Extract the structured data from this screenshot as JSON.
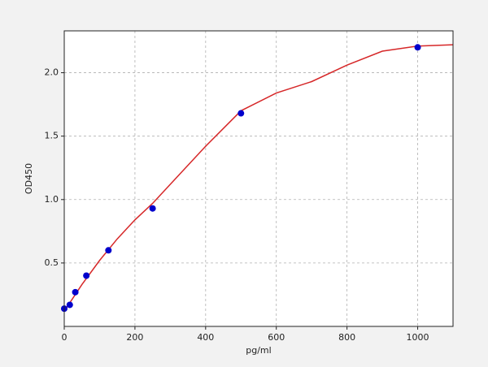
{
  "chart_data": {
    "type": "scatter",
    "xlabel": "pg/ml",
    "ylabel": "OD450",
    "xlim": [
      0,
      1100
    ],
    "ylim": [
      0,
      2.33
    ],
    "xticks": [
      0,
      200,
      400,
      600,
      800,
      1000
    ],
    "yticks": [
      0.5,
      {
        "value": 1,
        "label": "1.0"
      },
      1.5,
      {
        "value": 2,
        "label": "2.0"
      }
    ],
    "grid": true,
    "series": [
      {
        "type": "line",
        "color": "#d62728",
        "x": [
          0,
          50,
          100,
          150,
          200,
          250,
          300,
          400,
          500,
          600,
          700,
          800,
          900,
          1000,
          1100
        ],
        "values": [
          0.12,
          0.33,
          0.52,
          0.69,
          0.84,
          0.97,
          1.12,
          1.42,
          1.7,
          1.84,
          1.93,
          2.06,
          2.17,
          2.21,
          2.22
        ]
      },
      {
        "type": "scatter",
        "color": "#0000cc",
        "x": [
          0,
          15.6,
          31.25,
          62.5,
          125,
          250,
          500,
          1000
        ],
        "values": [
          0.14,
          0.17,
          0.27,
          0.4,
          0.6,
          0.93,
          1.68,
          2.2
        ]
      }
    ]
  }
}
